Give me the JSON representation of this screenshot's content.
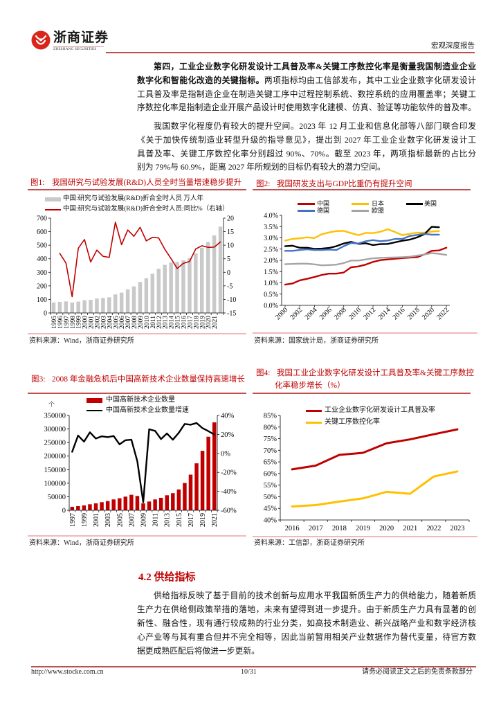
{
  "header": {
    "brand_cn": "浙商证券",
    "brand_en": "ZHESHANG SECURITIES",
    "report_type": "宏观深度报告"
  },
  "body": {
    "para1": {
      "line1_bold": "第四，工业企业数字化研发设计工具普及率&关键工序数控化率是衡量我国制造业企业",
      "line2_bold": "数字化和智能化改造的关键指标。",
      "line2_rest": "两项指标均由工信部发布，其中工业企业数字化研发设计",
      "line3": "工具普及率是指制造企业在制造关键工序中过程控制系统、数控系统的应用覆盖率；关键工",
      "line4": "序数控化率是指制造企业开展产品设计时使用数字化建模、仿真、验证等功能软件的普及率。"
    },
    "para2": {
      "lines": [
        "我国数字化程度仍有较大的提升空间。2023 年 12 月工业和信息化部等八部门联合印发",
        "《关于加快传统制造业转型升级的指导意见》，提出到 2027 年工业企业数字化研发设计工",
        "具普及率、关键工序数控化率分别超过 90%、70%。截至 2023 年，两项指标最新的占比分",
        "别为 79%与 60.9%，距离 2027 年所规划的目标仍有较大的潜力空间。"
      ]
    }
  },
  "section": {
    "heading": "4.2 供给指标",
    "lines": [
      "供给指标反映了基于目前的技术创新与应用水平我国新质生产力的供给能力，随着新质",
      "生产力在供给侧政策举措的落地，未来有望得到进一步提升。由于新质生产力具有显著的创",
      "新性、融合性，现有通行较成熟的行业分类，如高技术制造业、新兴战略产业和数字经济核",
      "心产业等与其有重合但并不完全相等，因此当前暂用相关产业数据作为替代变量，待官方数",
      "据更成熟匹配后将做进一步更新。"
    ]
  },
  "footer": {
    "url": "http://www.stocke.com.cn",
    "page": "10/31",
    "disclaimer": "请务必阅读正文之后的免责条款部分"
  },
  "colors": {
    "brand_red": "#c00000",
    "rule_red": "#c0504d",
    "separator_pink": "#f2b8b8",
    "logo_red": "#d9261c"
  },
  "chart_data": [
    {
      "id": "fig1",
      "type": "bar+line",
      "label": "图1:",
      "title": "我国研究与试验发展(R&D)人员全时当量增速稳步提升",
      "categories": [
        "1995",
        "1996",
        "1997",
        "1998",
        "1999",
        "2000",
        "2001",
        "2002",
        "2003",
        "2004",
        "2005",
        "2006",
        "2007",
        "2008",
        "2009",
        "2010",
        "2011",
        "2012",
        "2013",
        "2014",
        "2015",
        "2016",
        "2017",
        "2018",
        "2019",
        "2020",
        "2021",
        "2022"
      ],
      "tick_labels": [
        "1995",
        "1996",
        "1997",
        "1998",
        "1999",
        "2000",
        "2001",
        "2002",
        "2003",
        "2004",
        "2005",
        "2006",
        "2007",
        "2008",
        "2009",
        "2010",
        "2011",
        "2012",
        "2013",
        "2014",
        "2015",
        "2016",
        "2017",
        "2018",
        "2019",
        "2020",
        "2021"
      ],
      "series": [
        {
          "name": "中国:研究与试验发展(R&D)折合全时人员 万人年",
          "type": "bar",
          "axis": "left",
          "color": "#c9c9c9",
          "values": [
            77,
            82,
            85,
            77,
            84,
            94,
            97,
            106,
            111,
            116,
            137,
            150,
            174,
            196,
            229,
            256,
            289,
            326,
            355,
            372,
            377,
            388,
            403,
            439,
            481,
            524,
            572,
            637
          ]
        },
        {
          "name": "中国:研究与试验发展(R&D)折合全时人员:同比%（右轴）",
          "type": "line",
          "axis": "right",
          "color": "#c00000",
          "width": 1.6,
          "values": [
            null,
            7.0,
            3.4,
            -9.0,
            8.9,
            12.1,
            3.8,
            8.2,
            5.9,
            5.5,
            18.5,
            10.2,
            15.6,
            13.3,
            16.6,
            11.6,
            12.9,
            12.7,
            8.5,
            5.1,
            1.4,
            3.3,
            4.0,
            8.6,
            9.8,
            9.2,
            9.3,
            11.2
          ]
        }
      ],
      "y_left": {
        "min": 0,
        "max": 700,
        "step": 100,
        "format": "int"
      },
      "y_right": {
        "min": -15,
        "max": 20,
        "step": 5,
        "format": "int"
      },
      "legend_position": "top-left",
      "grid": false,
      "source": "资料来源：Wind，浙商证券研究所"
    },
    {
      "id": "fig2",
      "type": "line",
      "label": "图2:",
      "title": "我国研发支出与GDP比重仍有提升空间",
      "categories": [
        "2000",
        "2001",
        "2002",
        "2003",
        "2004",
        "2005",
        "2006",
        "2007",
        "2008",
        "2009",
        "2010",
        "2011",
        "2012",
        "2013",
        "2014",
        "2015",
        "2016",
        "2017",
        "2018",
        "2019",
        "2020",
        "2021",
        "2022"
      ],
      "series": [
        {
          "name": "中国",
          "type": "line",
          "axis": "left",
          "color": "#c00000",
          "width": 2.4,
          "values": [
            0.92,
            0.97,
            1.11,
            1.18,
            1.26,
            1.35,
            1.41,
            1.41,
            1.46,
            1.69,
            1.73,
            1.81,
            1.93,
            2.01,
            2.04,
            2.07,
            2.1,
            2.12,
            2.14,
            2.26,
            2.42,
            2.44,
            2.56
          ]
        },
        {
          "name": "日本",
          "type": "line",
          "axis": "left",
          "color": "#ffc000",
          "width": 2.4,
          "values": [
            2.88,
            2.95,
            2.98,
            3.02,
            2.99,
            3.16,
            3.24,
            3.3,
            3.31,
            3.21,
            3.12,
            3.22,
            3.21,
            3.27,
            3.38,
            3.26,
            3.12,
            3.18,
            3.23,
            3.23,
            3.28,
            3.3,
            null
          ]
        },
        {
          "name": "美国",
          "type": "line",
          "axis": "left",
          "color": "#000000",
          "width": 2.4,
          "values": [
            2.63,
            2.65,
            2.56,
            2.56,
            2.51,
            2.52,
            2.55,
            2.63,
            2.75,
            2.82,
            2.73,
            2.76,
            2.68,
            2.72,
            2.73,
            2.8,
            2.87,
            2.92,
            3.02,
            3.16,
            3.49,
            3.47,
            null
          ]
        },
        {
          "name": "德国",
          "type": "line",
          "axis": "left",
          "color": "#4472c4",
          "width": 2.4,
          "values": [
            2.42,
            2.42,
            2.46,
            2.49,
            2.46,
            2.46,
            2.48,
            2.46,
            2.63,
            2.77,
            2.75,
            2.85,
            2.9,
            2.85,
            2.88,
            2.95,
            2.95,
            3.08,
            3.13,
            3.18,
            3.14,
            3.14,
            null
          ]
        },
        {
          "name": "欧盟",
          "type": "line",
          "axis": "left",
          "color": "#a5a5a5",
          "width": 2.4,
          "values": [
            1.83,
            1.84,
            1.85,
            1.85,
            1.82,
            1.78,
            1.79,
            1.81,
            1.88,
            1.99,
            1.99,
            2.04,
            2.09,
            2.11,
            2.12,
            2.13,
            2.14,
            2.16,
            2.21,
            2.26,
            2.32,
            2.29,
            2.24
          ]
        }
      ],
      "y_left": {
        "min": 0,
        "max": 4,
        "step": 0.5,
        "format": "pct1"
      },
      "legend_position": "top",
      "grid": false,
      "source": "资料来源：国家统计局，浙商证券研究所"
    },
    {
      "id": "fig3",
      "type": "bar+line",
      "label": "图3:",
      "title": "2008 年金融危机后中国高新技术企业数量保持高速增长",
      "unit": "个",
      "categories": [
        "1997",
        "1998",
        "1999",
        "2000",
        "2001",
        "2002",
        "2003",
        "2004",
        "2005",
        "2006",
        "2007",
        "2008",
        "2009",
        "2010",
        "2011",
        "2012",
        "2013",
        "2014",
        "2015",
        "2016",
        "2017",
        "2018",
        "2019",
        "2020",
        "2021"
      ],
      "series": [
        {
          "name": "中国高新技术企业数量",
          "type": "bar",
          "axis": "left",
          "color": "#c00000",
          "values": [
            12800,
            15400,
            17900,
            22200,
            25600,
            29900,
            34100,
            40100,
            44400,
            50400,
            57200,
            52900,
            25600,
            32400,
            40100,
            46100,
            55500,
            63200,
            76800,
            100700,
            131500,
            173300,
            219400,
            271500,
            324400
          ]
        },
        {
          "name": "中国高新技术企业数量增速",
          "type": "line",
          "axis": "right",
          "color": "#000000",
          "width": 2.4,
          "values": [
            1.7,
            18.8,
            12.4,
            22.2,
            15.6,
            18.0,
            17.1,
            18.3,
            9.5,
            13.9,
            14.4,
            -8.3,
            -51.5,
            25.4,
            23.7,
            15.1,
            21.0,
            14.4,
            21.7,
            31.0,
            30.2,
            32.0,
            26.6,
            23.4,
            19.8
          ]
        }
      ],
      "y_left": {
        "min": 0,
        "max": 350000,
        "step": 50000,
        "format": "int"
      },
      "y_right": {
        "min": -60,
        "max": 40,
        "step": 20,
        "format": "pct0"
      },
      "legend_position": "top",
      "grid": false,
      "source": "资料来源：Wind，浙商证券研究所"
    },
    {
      "id": "fig4",
      "type": "line",
      "label": "图4:",
      "title": "我国工业企业数字化研发设计工具普及率&关键工序数控化率稳步增长（%）",
      "title_lines": [
        "我国工业企业数字化研发设计工具普及率&关键工序数控",
        "化率稳步增长（%）"
      ],
      "categories": [
        "2016",
        "2017",
        "2018",
        "2019",
        "2020",
        "2021",
        "2022",
        "2023"
      ],
      "series": [
        {
          "name": "工业企业数字化研发设计工具普及率",
          "type": "line",
          "axis": "left",
          "color": "#c00000",
          "width": 3,
          "values": [
            61.8,
            63.4,
            68.0,
            68.9,
            73.0,
            74.7,
            76.9,
            79.0
          ]
        },
        {
          "name": "关键工序数控化率",
          "type": "line",
          "axis": "left",
          "color": "#ffc000",
          "width": 3,
          "values": [
            45.8,
            46.4,
            47.9,
            49.3,
            52.1,
            51.3,
            58.7,
            60.9
          ]
        }
      ],
      "y_left": {
        "min": 40,
        "max": 85,
        "step": 5,
        "format": "pct0"
      },
      "legend_position": "top",
      "grid": false,
      "source": "资料来源：工信部，浙商证券研究所"
    }
  ]
}
